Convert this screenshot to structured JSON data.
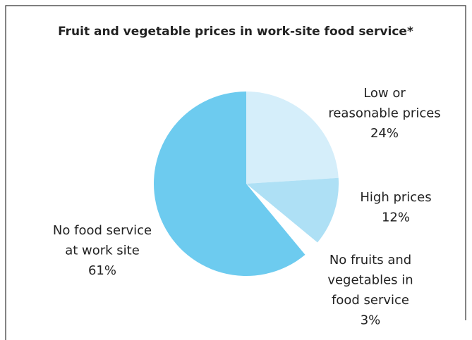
{
  "chart_data": {
    "type": "pie",
    "title": "Fruit and vegetable prices in work-site food service*",
    "categories": [
      [
        "Low or",
        "reasonable prices"
      ],
      [
        "High prices"
      ],
      [
        "No fruits and",
        "vegetables in",
        "food service"
      ],
      [
        "No food service",
        "at work site"
      ]
    ],
    "values": [
      24,
      12,
      3,
      61
    ],
    "value_labels": [
      "24%",
      "12%",
      "3%",
      "61%"
    ],
    "colors": [
      "#d5eefa",
      "#aee0f5",
      "#ffffff",
      "#6dcbef"
    ]
  }
}
